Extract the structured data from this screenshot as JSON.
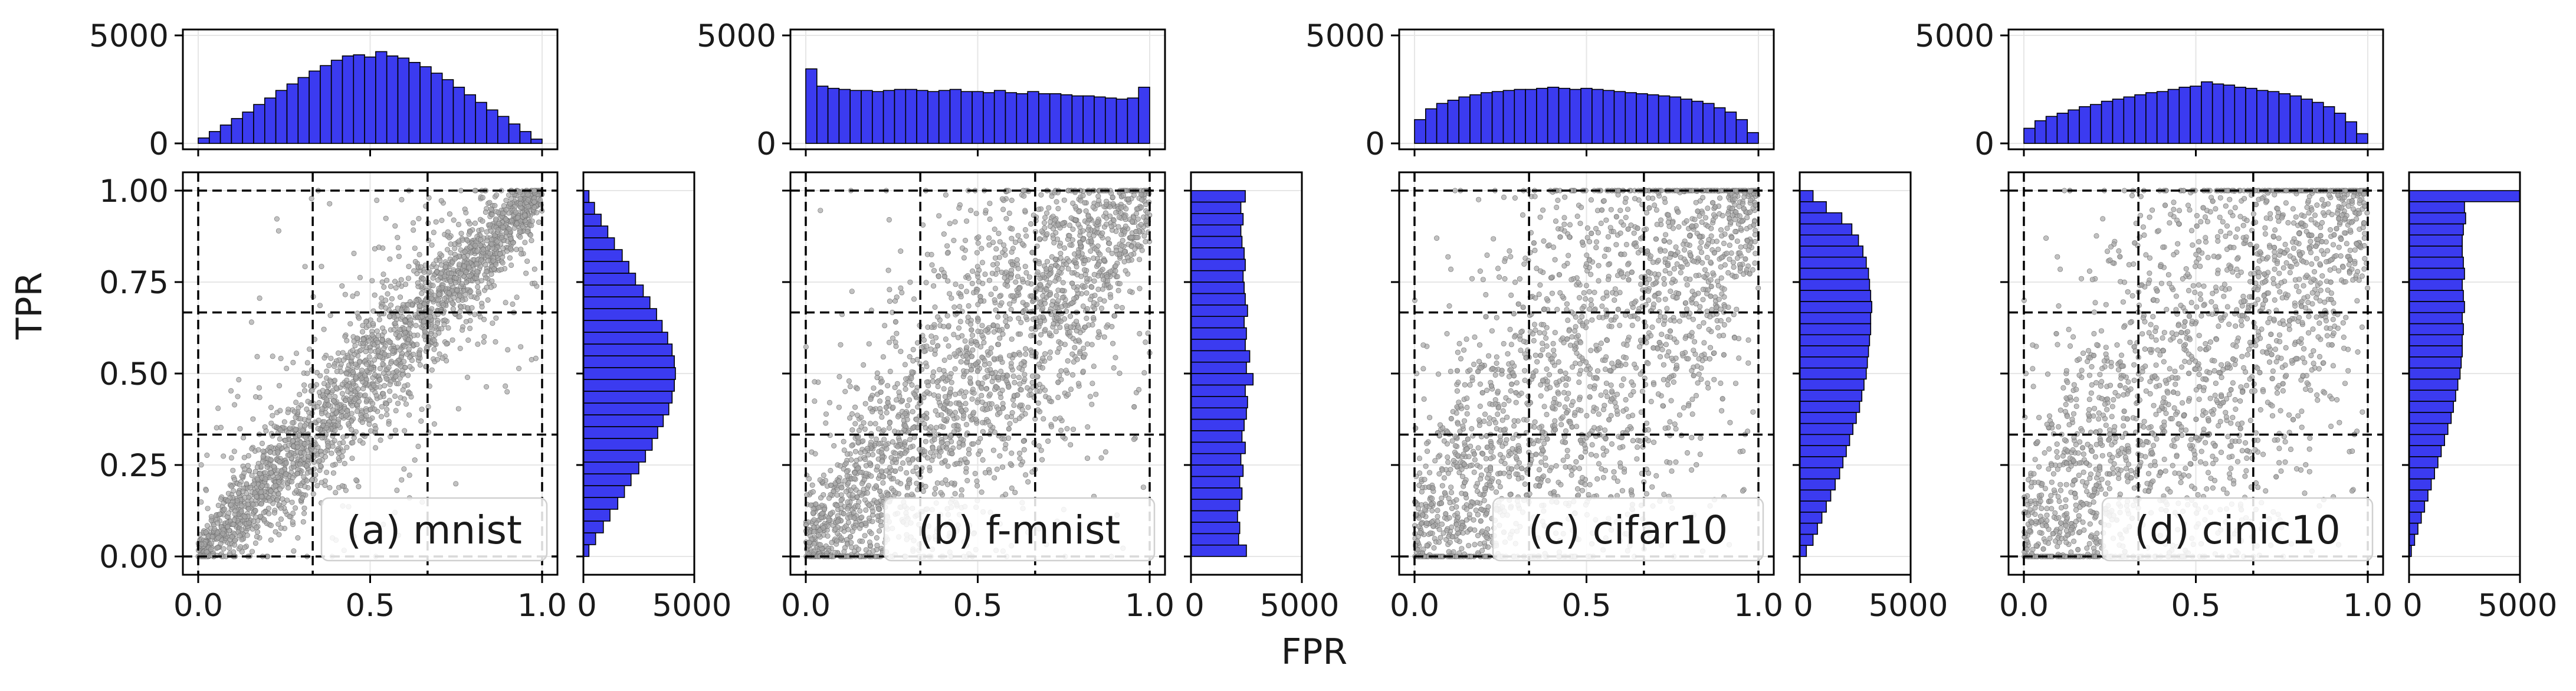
{
  "figure": {
    "ylabel": "TPR",
    "xlabel": "FPR"
  },
  "chart_data": [
    {
      "type": "scatter",
      "label": "(a) mnist",
      "xlim": [
        0.0,
        1.0
      ],
      "ylim": [
        0.0,
        1.0
      ],
      "xticks": [
        "0.0",
        "0.5",
        "1.0"
      ],
      "yticks": [
        "0.00",
        "0.25",
        "0.50",
        "0.75",
        "1.00"
      ],
      "dashed_grid_lines": [
        0.0,
        0.333,
        0.667,
        1.0
      ],
      "point_color": "#a6a6a6",
      "scatter_shape": {
        "diagonal_spread": 0.09,
        "outlier_spread": 0.25
      },
      "top_hist": {
        "ylim": [
          0,
          5000
        ],
        "yticks": [
          "0",
          "5000"
        ],
        "counts": [
          250,
          550,
          850,
          1150,
          1450,
          1800,
          2100,
          2450,
          2750,
          3050,
          3350,
          3600,
          3850,
          4050,
          4100,
          4000,
          4250,
          4050,
          3950,
          3750,
          3550,
          3250,
          2950,
          2600,
          2250,
          1900,
          1550,
          1250,
          900,
          550,
          200
        ]
      },
      "right_hist": {
        "xlim": [
          0,
          5000
        ],
        "xticks": [
          "0",
          "5000"
        ],
        "counts": [
          250,
          550,
          900,
          1200,
          1550,
          1850,
          2150,
          2500,
          2800,
          3100,
          3350,
          3600,
          3850,
          4000,
          4100,
          4150,
          4100,
          4000,
          3800,
          3550,
          3300,
          3000,
          2700,
          2350,
          2050,
          1750,
          1400,
          1100,
          800,
          500,
          250
        ]
      }
    },
    {
      "type": "scatter",
      "label": "(b) f-mnist",
      "xlim": [
        0.0,
        1.0
      ],
      "ylim": [
        0.0,
        1.0
      ],
      "xticks": [
        "0.0",
        "0.5",
        "1.0"
      ],
      "yticks": [
        "",
        "",
        "",
        "",
        ""
      ],
      "dashed_grid_lines": [
        0.0,
        0.333,
        0.667,
        1.0
      ],
      "point_color": "#a6a6a6",
      "scatter_shape": {
        "diagonal_spread": 0.22,
        "outlier_spread": 0.45
      },
      "top_hist": {
        "ylim": [
          0,
          5000
        ],
        "yticks": [
          "0",
          "5000"
        ],
        "counts": [
          3450,
          2650,
          2550,
          2500,
          2450,
          2450,
          2400,
          2450,
          2500,
          2500,
          2450,
          2400,
          2450,
          2500,
          2400,
          2400,
          2350,
          2450,
          2350,
          2300,
          2400,
          2300,
          2300,
          2250,
          2200,
          2200,
          2150,
          2100,
          2050,
          2100,
          2600
        ]
      },
      "right_hist": {
        "xlim": [
          0,
          5000
        ],
        "xticks": [
          "0",
          "5000"
        ],
        "counts": [
          2500,
          2150,
          2200,
          2100,
          2200,
          2300,
          2200,
          2350,
          2250,
          2450,
          2300,
          2400,
          2500,
          2550,
          2450,
          2800,
          2500,
          2650,
          2450,
          2500,
          2400,
          2550,
          2450,
          2400,
          2350,
          2450,
          2400,
          2300,
          2250,
          2350,
          2250,
          2450
        ]
      }
    },
    {
      "type": "scatter",
      "label": "(c) cifar10",
      "xlim": [
        0.0,
        1.0
      ],
      "ylim": [
        0.0,
        1.0
      ],
      "xticks": [
        "0.0",
        "0.5",
        "1.0"
      ],
      "yticks": [
        "",
        "",
        "",
        "",
        ""
      ],
      "dashed_grid_lines": [
        0.0,
        0.333,
        0.667,
        1.0
      ],
      "point_color": "#a6a6a6",
      "scatter_shape": {
        "diagonal_spread": 0.35,
        "outlier_spread": 0.55
      },
      "top_hist": {
        "ylim": [
          0,
          5000
        ],
        "yticks": [
          "0",
          "5000"
        ],
        "counts": [
          1100,
          1600,
          1850,
          2000,
          2150,
          2250,
          2350,
          2400,
          2450,
          2500,
          2500,
          2550,
          2600,
          2550,
          2500,
          2550,
          2500,
          2450,
          2400,
          2350,
          2300,
          2250,
          2200,
          2150,
          2050,
          1950,
          1850,
          1650,
          1450,
          1100,
          500
        ]
      },
      "right_hist": {
        "xlim": [
          0,
          5000
        ],
        "xticks": [
          "0",
          "5000"
        ],
        "counts": [
          300,
          600,
          800,
          1000,
          1200,
          1400,
          1600,
          1800,
          1950,
          2100,
          2250,
          2400,
          2550,
          2700,
          2800,
          2900,
          3000,
          3050,
          3100,
          3150,
          3200,
          3200,
          3250,
          3200,
          3150,
          3100,
          3000,
          2850,
          2650,
          2350,
          1900,
          1200,
          600
        ]
      }
    },
    {
      "type": "scatter",
      "label": "(d) cinic10",
      "xlim": [
        0.0,
        1.0
      ],
      "ylim": [
        0.0,
        1.0
      ],
      "xticks": [
        "0.0",
        "0.5",
        "1.0"
      ],
      "yticks": [
        "",
        "",
        "",
        "",
        ""
      ],
      "dashed_grid_lines": [
        0.0,
        0.333,
        0.667,
        1.0
      ],
      "point_color": "#a6a6a6",
      "scatter_shape": {
        "diagonal_spread": 0.38,
        "outlier_spread": 0.55
      },
      "top_hist": {
        "ylim": [
          0,
          5000
        ],
        "yticks": [
          "0",
          "5000"
        ],
        "counts": [
          700,
          1050,
          1250,
          1400,
          1550,
          1700,
          1800,
          1950,
          2050,
          2150,
          2250,
          2350,
          2400,
          2500,
          2600,
          2650,
          2850,
          2750,
          2700,
          2600,
          2550,
          2450,
          2400,
          2300,
          2200,
          2050,
          1900,
          1700,
          1400,
          1000,
          450
        ]
      },
      "right_hist": {
        "xlim": [
          0,
          5000
        ],
        "xticks": [
          "0",
          "5000"
        ],
        "counts": [
          100,
          250,
          400,
          550,
          700,
          850,
          1000,
          1150,
          1300,
          1450,
          1600,
          1750,
          1900,
          2000,
          2100,
          2200,
          2300,
          2350,
          2400,
          2400,
          2450,
          2400,
          2500,
          2450,
          2400,
          2500,
          2450,
          2400,
          2400,
          2450,
          2550,
          2500,
          5000
        ]
      }
    }
  ]
}
